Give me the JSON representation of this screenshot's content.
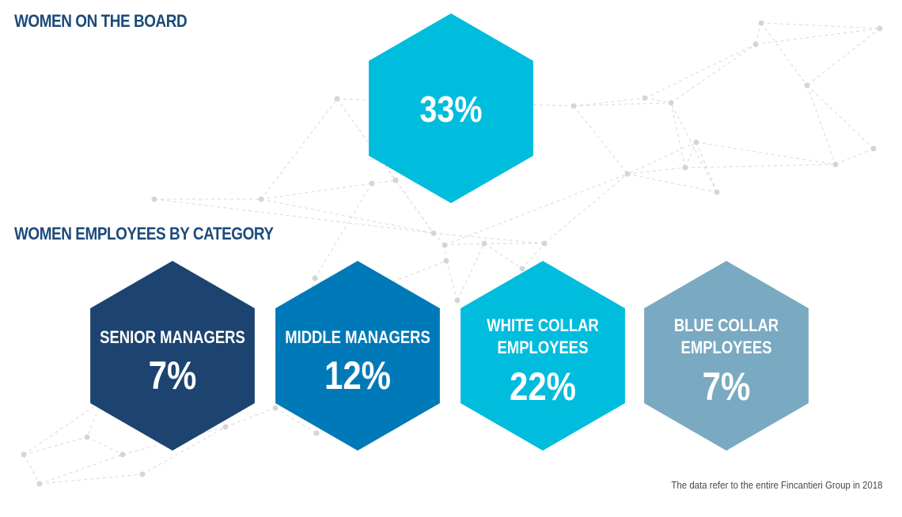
{
  "board_section": {
    "title": "WOMEN ON THE BOARD",
    "value": "33%",
    "color": "#00bcdd"
  },
  "category_section": {
    "title": "WOMEN EMPLOYEES BY CATEGORY"
  },
  "chart_data": {
    "type": "table",
    "categories": [
      "SENIOR MANAGERS",
      "MIDDLE MANAGERS",
      "WHITE COLLAR EMPLOYEES",
      "BLUE COLLAR EMPLOYEES"
    ],
    "values": [
      7,
      12,
      22,
      7
    ],
    "value_labels": [
      "7%",
      "12%",
      "22%",
      "7%"
    ],
    "label_lines": [
      [
        "SENIOR MANAGERS"
      ],
      [
        "MIDDLE MANAGERS"
      ],
      [
        "WHITE COLLAR",
        "EMPLOYEES"
      ],
      [
        "BLUE COLLAR",
        "EMPLOYEES"
      ]
    ],
    "colors": [
      "#1d4370",
      "#0079b8",
      "#00bcdd",
      "#7aa9c2"
    ]
  },
  "footnote": "The data refer to the entire Fincantieri Group in 2018",
  "background_color": "#ffffff",
  "title_color": "#1d4a7a"
}
